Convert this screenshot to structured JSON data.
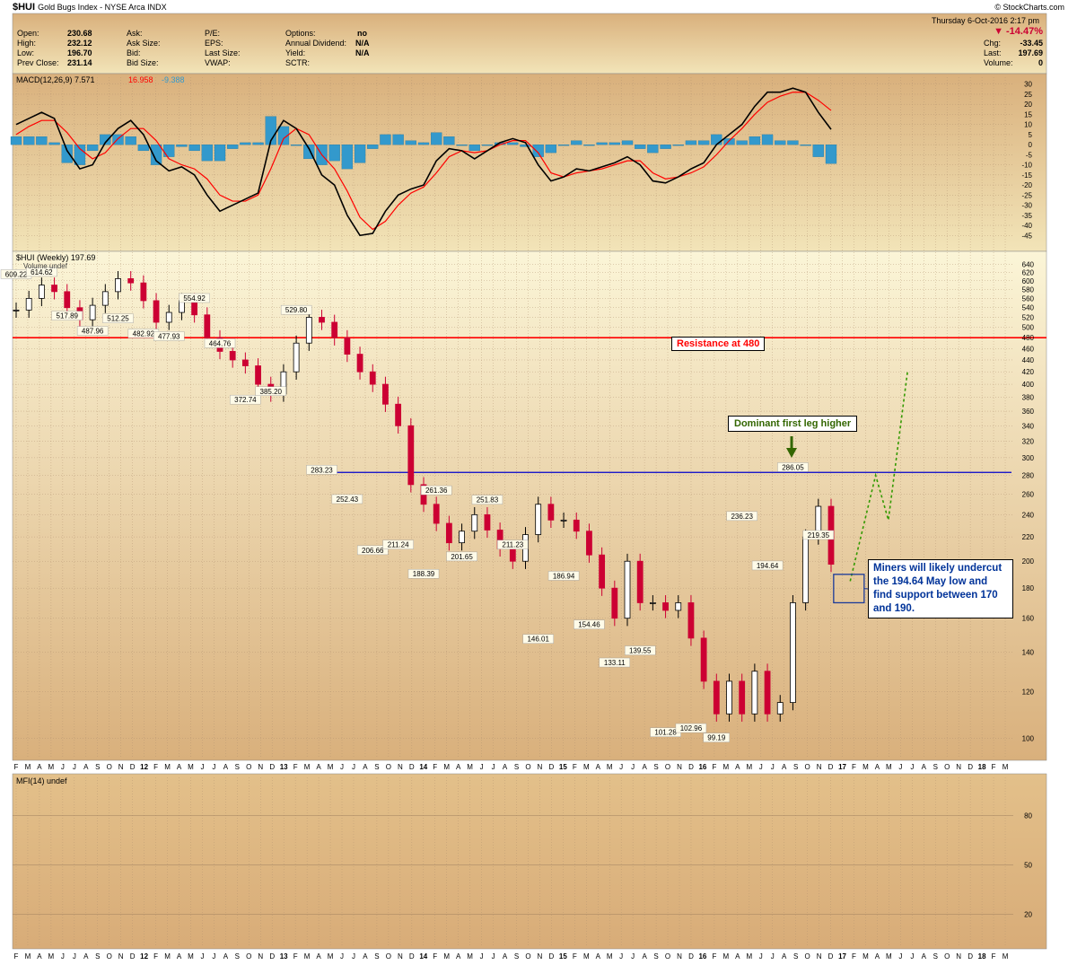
{
  "header": {
    "symbol": "$HUI",
    "name": "Gold Bugs Index - NYSE Arca  INDX",
    "site": "© StockCharts.com",
    "date_line": "Thursday  6-Oct-2016  2:17 pm",
    "quote": [
      {
        "label": "Open:",
        "value": "230.68"
      },
      {
        "label": "High:",
        "value": "232.12"
      },
      {
        "label": "Low:",
        "value": "196.70"
      },
      {
        "label": "Prev Close:",
        "value": "231.14"
      }
    ],
    "quote2": [
      {
        "label": "Ask:",
        "value": ""
      },
      {
        "label": "Ask Size:",
        "value": ""
      },
      {
        "label": "Bid:",
        "value": ""
      },
      {
        "label": "Bid Size:",
        "value": ""
      }
    ],
    "quote3": [
      {
        "label": "P/E:",
        "value": ""
      },
      {
        "label": "EPS:",
        "value": ""
      },
      {
        "label": "Last Size:",
        "value": ""
      },
      {
        "label": "VWAP:",
        "value": ""
      }
    ],
    "quote4": [
      {
        "label": "Options:",
        "value": "no"
      },
      {
        "label": "Annual Dividend:",
        "value": "N/A"
      },
      {
        "label": "Yield:",
        "value": "N/A"
      },
      {
        "label": "SCTR:",
        "value": ""
      }
    ],
    "change_pct": "▼ -14.47%",
    "right": [
      {
        "label": "Chg:",
        "value": "-33.45"
      },
      {
        "label": "Last:",
        "value": "197.69"
      },
      {
        "label": "Volume:",
        "value": "0"
      }
    ]
  },
  "colors": {
    "bg_top": "#f5efc9",
    "bg_bottom": "#d9b07c",
    "up": "#000000",
    "down": "#cc0033",
    "resistance": "#ff0000",
    "neckline": "#0000cc",
    "projection": "#339900",
    "macd": "#000000",
    "signal": "#ff0000",
    "hist": "#3399cc"
  },
  "chart_data": [
    {
      "type": "line",
      "title": "MACD(12,26,9) 7.571, 16.958, -9.388",
      "legend": [
        "MACD(12,26,9) 7.571",
        "16.958",
        "-9.388"
      ],
      "y_ticks": [
        30,
        25,
        20,
        15,
        10,
        5,
        0,
        -5,
        -10,
        -15,
        -20,
        -25,
        -30,
        -35,
        -40,
        -45
      ],
      "ylim": [
        -48,
        33
      ],
      "x_index": [
        0,
        1,
        2,
        3,
        4,
        5,
        6,
        7,
        8,
        9,
        10,
        11,
        12,
        13,
        14,
        15,
        16,
        17,
        18,
        19,
        20,
        21,
        22,
        23,
        24,
        25,
        26,
        27,
        28,
        29,
        30,
        31,
        32,
        33,
        34,
        35,
        36,
        37,
        38,
        39,
        40,
        41,
        42,
        43,
        44,
        45,
        46,
        47,
        48,
        49,
        50,
        51,
        52,
        53,
        54,
        55,
        56,
        57,
        58,
        59,
        60,
        61,
        62,
        63,
        64
      ],
      "series": [
        {
          "name": "MACD(12,26,9) 7.571",
          "values": [
            10,
            13,
            16,
            13,
            -3,
            -12,
            -10,
            1,
            8,
            12,
            5,
            -8,
            -13,
            -11,
            -15,
            -25,
            -33,
            -30,
            -27,
            -24,
            2,
            12,
            8,
            -2,
            -15,
            -20,
            -35,
            -45,
            -44,
            -33,
            -25,
            -22,
            -20,
            -8,
            -2,
            -3,
            -7,
            -3,
            1,
            3,
            1,
            -10,
            -18,
            -16,
            -12,
            -13,
            -11,
            -9,
            -6,
            -10,
            -18,
            -19,
            -16,
            -12,
            -9,
            0,
            5,
            10,
            19,
            26,
            26,
            28,
            26,
            16,
            7.571
          ]
        },
        {
          "name": "16.958",
          "values": [
            5,
            9,
            12,
            12,
            6,
            -2,
            -7,
            -4,
            3,
            8,
            8,
            2,
            -7,
            -10,
            -12,
            -17,
            -25,
            -28,
            -28,
            -25,
            -12,
            3,
            8,
            5,
            -5,
            -12,
            -23,
            -36,
            -42,
            -38,
            -30,
            -24,
            -21,
            -14,
            -6,
            -3,
            -4,
            -3,
            0,
            2,
            2,
            -4,
            -14,
            -16,
            -14,
            -13,
            -12,
            -10,
            -8,
            -8,
            -14,
            -17,
            -16,
            -14,
            -11,
            -5,
            2,
            8,
            15,
            21,
            24,
            26,
            26,
            22,
            16.958
          ]
        },
        {
          "name": "-9.388",
          "values": [
            4,
            4,
            4,
            1,
            -9,
            -10,
            -3,
            5,
            5,
            4,
            -3,
            -10,
            -6,
            -1,
            -3,
            -8,
            -8,
            -2,
            1,
            1,
            14,
            9,
            0,
            -7,
            -10,
            -8,
            -12,
            -9,
            -2,
            5,
            5,
            2,
            1,
            6,
            4,
            0,
            -3,
            0,
            1,
            1,
            -1,
            -6,
            -4,
            0,
            2,
            0,
            1,
            1,
            2,
            -2,
            -4,
            -2,
            0,
            2,
            2,
            5,
            3,
            2,
            4,
            5,
            2,
            2,
            0,
            -6,
            -9.388
          ]
        }
      ]
    },
    {
      "type": "bar",
      "title": "$HUI (Weekly) 197.69",
      "legend": [
        "$HUI (Weekly) 197.69",
        "Volume undef"
      ],
      "x_tick_labels": [
        "F",
        "M",
        "A",
        "M",
        "J",
        "J",
        "A",
        "S",
        "O",
        "N",
        "D",
        "12",
        "F",
        "M",
        "A",
        "M",
        "J",
        "J",
        "A",
        "S",
        "O",
        "N",
        "D",
        "13",
        "F",
        "M",
        "A",
        "M",
        "J",
        "J",
        "A",
        "S",
        "O",
        "N",
        "D",
        "14",
        "F",
        "M",
        "A",
        "M",
        "J",
        "J",
        "A",
        "S",
        "O",
        "N",
        "D",
        "15",
        "F",
        "M",
        "A",
        "M",
        "J",
        "J",
        "A",
        "S",
        "O",
        "N",
        "D",
        "16",
        "F",
        "M",
        "A",
        "M",
        "J",
        "J",
        "A",
        "S",
        "O",
        "N",
        "D",
        "17",
        "F",
        "M",
        "A",
        "M",
        "J",
        "J",
        "A",
        "S",
        "O",
        "N",
        "D",
        "18",
        "F",
        "M"
      ],
      "y_ticks": [
        640,
        620,
        600,
        580,
        560,
        540,
        520,
        500,
        480,
        460,
        440,
        420,
        400,
        380,
        360,
        340,
        320,
        300,
        280,
        260,
        240,
        220,
        200,
        180,
        160,
        140,
        120,
        100
      ],
      "ylim": [
        93,
        650
      ],
      "log_scale": true,
      "x_index": [
        0,
        1,
        2,
        3,
        4,
        5,
        6,
        7,
        8,
        9,
        10,
        11,
        12,
        13,
        14,
        15,
        16,
        17,
        18,
        19,
        20,
        21,
        22,
        23,
        24,
        25,
        26,
        27,
        28,
        29,
        30,
        31,
        32,
        33,
        34,
        35,
        36,
        37,
        38,
        39,
        40,
        41,
        42,
        43,
        44,
        45,
        46,
        47,
        48,
        49,
        50,
        51,
        52,
        53,
        54,
        55,
        56,
        57,
        58,
        59,
        60,
        61,
        62,
        63,
        64
      ],
      "values": [
        535,
        560,
        590,
        575,
        540,
        515,
        545,
        575,
        605,
        595,
        555,
        510,
        530,
        555,
        525,
        480,
        455,
        440,
        430,
        400,
        385,
        420,
        470,
        520,
        510,
        480,
        450,
        420,
        400,
        370,
        340,
        270,
        250,
        232,
        215,
        225,
        240,
        226,
        210,
        200,
        222,
        250,
        235,
        235,
        225,
        205,
        180,
        160,
        200,
        170,
        170,
        165,
        170,
        148,
        125,
        110,
        125,
        110,
        130,
        110,
        115,
        170,
        220,
        248,
        197.69
      ],
      "price_labels": [
        "609.22",
        "614.62",
        "517.89",
        "487.96",
        "512.25",
        "482.92",
        "477.93",
        "554.92",
        "464.76",
        "372.74",
        "385.20",
        "529.80",
        "283.23",
        "252.43",
        "206.66",
        "211.24",
        "188.39",
        "261.36",
        "201.65",
        "251.83",
        "211.23",
        "146.01",
        "186.94",
        "154.46",
        "133.11",
        "139.55",
        "101.28",
        "102.96",
        "99.19",
        "236.23",
        "194.64",
        "286.05",
        "219.35"
      ],
      "annotations": [
        "Resistance at 480",
        "Dominant first leg higher",
        "Miners will likely undercut the 194.64 May low and find support between 170 and 190."
      ],
      "resistance": 480,
      "neckline": 283.23,
      "projection_x": [
        65.5,
        67.5,
        68.5,
        70.0
      ],
      "projection_y": [
        185,
        280,
        235,
        420
      ]
    },
    {
      "type": "line",
      "title": "MFI(14) undef",
      "y_ticks": [
        80,
        50,
        20
      ],
      "ylim": [
        0,
        100
      ]
    }
  ]
}
